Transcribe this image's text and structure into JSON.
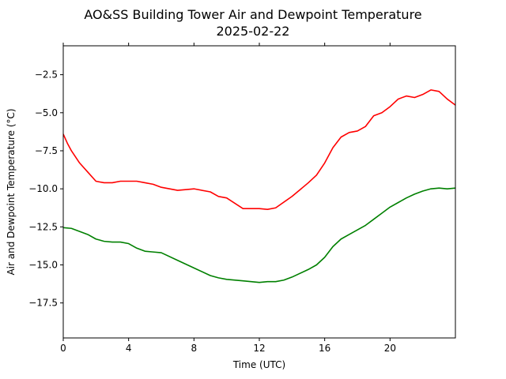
{
  "chart_data": {
    "type": "line",
    "title": "AO&SS Building Tower Air and Dewpoint Temperature",
    "subtitle": "2025-02-22",
    "xlabel": "Time (UTC)",
    "ylabel": "Air and Dewpoint Temperature (°C)",
    "xlim": [
      0,
      24
    ],
    "ylim": [
      -19.8,
      -0.6
    ],
    "x_ticks": [
      0,
      4,
      8,
      12,
      16,
      20
    ],
    "y_ticks": [
      -17.5,
      -15.0,
      -12.5,
      -10.0,
      -7.5,
      -5.0,
      -2.5
    ],
    "grid": false,
    "legend": "none",
    "series": [
      {
        "color": "#ff0000",
        "x": [
          0,
          0.25,
          0.5,
          1,
          1.5,
          2,
          2.5,
          3,
          3.5,
          4,
          4.5,
          5,
          5.5,
          6,
          7,
          8,
          9,
          9.5,
          10,
          11,
          11.5,
          12,
          12.5,
          13,
          14,
          15,
          15.5,
          16,
          16.5,
          17,
          17.5,
          18,
          18.5,
          19,
          19.5,
          20,
          20.5,
          21,
          21.5,
          22,
          22.5,
          23,
          23.5,
          24
        ],
        "y": [
          -6.4,
          -7.0,
          -7.5,
          -8.3,
          -8.9,
          -9.5,
          -9.6,
          -9.6,
          -9.5,
          -9.5,
          -9.5,
          -9.6,
          -9.7,
          -9.9,
          -10.1,
          -10.0,
          -10.2,
          -10.5,
          -10.6,
          -11.3,
          -11.3,
          -11.3,
          -11.35,
          -11.25,
          -10.5,
          -9.6,
          -9.1,
          -8.3,
          -7.3,
          -6.6,
          -6.3,
          -6.2,
          -5.9,
          -5.2,
          -5.0,
          -4.6,
          -4.1,
          -3.9,
          -4.0,
          -3.8,
          -3.5,
          -3.6,
          -4.1,
          -4.5
        ]
      },
      {
        "color": "#008000",
        "x": [
          0,
          0.5,
          1,
          1.5,
          2,
          2.5,
          3,
          3.5,
          4,
          4.5,
          5,
          5.5,
          6,
          7,
          8,
          9,
          9.5,
          10,
          11,
          12,
          12.5,
          13,
          13.5,
          14,
          15,
          15.5,
          16,
          16.5,
          17,
          17.5,
          18,
          18.5,
          19,
          19.5,
          20,
          20.5,
          21,
          21.5,
          22,
          22.5,
          23,
          23.5,
          24
        ],
        "y": [
          -12.55,
          -12.6,
          -12.8,
          -13.0,
          -13.3,
          -13.45,
          -13.5,
          -13.5,
          -13.6,
          -13.9,
          -14.1,
          -14.15,
          -14.2,
          -14.7,
          -15.2,
          -15.7,
          -15.85,
          -15.95,
          -16.05,
          -16.15,
          -16.1,
          -16.1,
          -16.0,
          -15.8,
          -15.3,
          -15.0,
          -14.5,
          -13.8,
          -13.3,
          -13.0,
          -12.7,
          -12.4,
          -12.0,
          -11.6,
          -11.2,
          -10.9,
          -10.6,
          -10.35,
          -10.15,
          -10.0,
          -9.95,
          -10.0,
          -9.95
        ]
      }
    ]
  }
}
